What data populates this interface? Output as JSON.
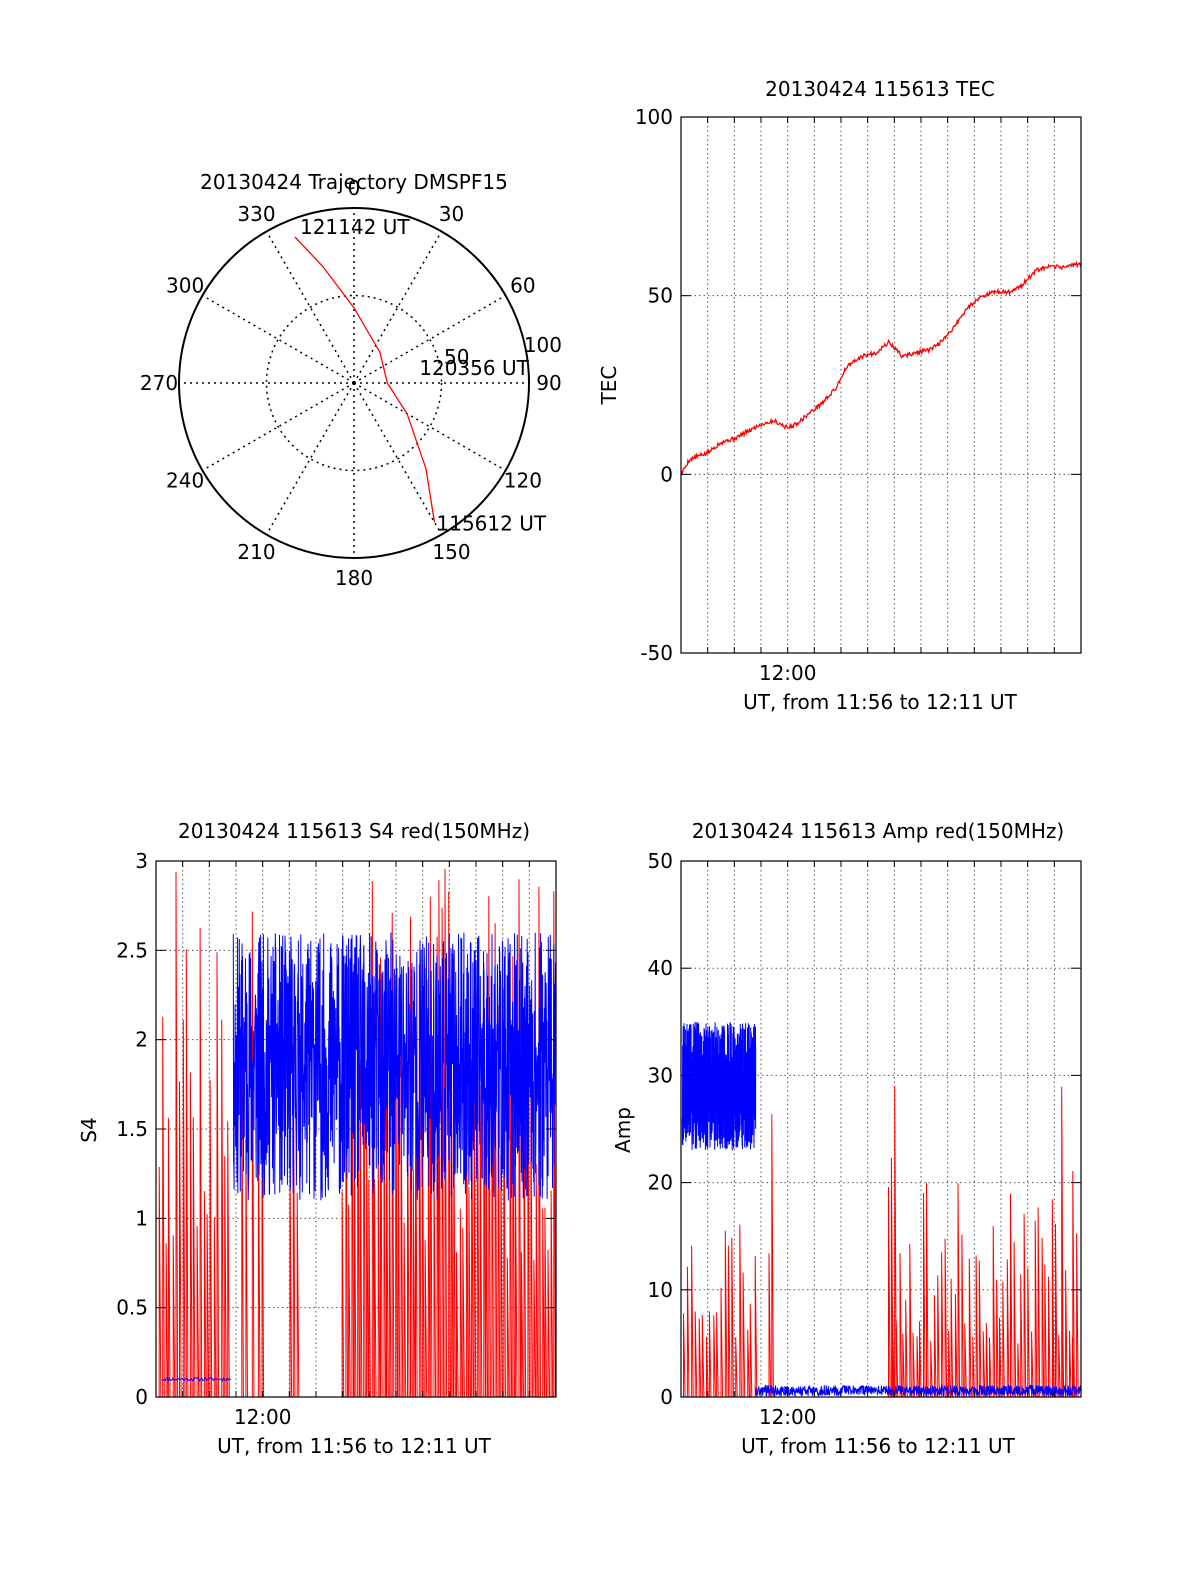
{
  "chart_data": [
    {
      "type": "polar",
      "title": "20130424 Trajectory DMSPF15",
      "angle_labels": [
        "0",
        "30",
        "60",
        "90",
        "120",
        "150",
        "180",
        "210",
        "240",
        "270",
        "300",
        "330"
      ],
      "radial_labels": [
        "50",
        "100"
      ],
      "radial_max": 100,
      "grid": true,
      "track_color": "#ff0000",
      "track_points": [
        {
          "azimuth": 150,
          "zenith": 92
        },
        {
          "azimuth": 140,
          "zenith": 64
        },
        {
          "azimuth": 120,
          "zenith": 35
        },
        {
          "azimuth": 90,
          "zenith": 19
        },
        {
          "azimuth": 40,
          "zenith": 23
        },
        {
          "azimuth": 0,
          "zenith": 43
        },
        {
          "azimuth": 345,
          "zenith": 69
        },
        {
          "azimuth": 338,
          "zenith": 90
        }
      ],
      "annotations": [
        {
          "text": "121142 UT",
          "azimuth": 338,
          "zenith": 90
        },
        {
          "text": "120356 UT",
          "azimuth": 90,
          "zenith": 19
        },
        {
          "text": "115612 UT",
          "azimuth": 150,
          "zenith": 92
        }
      ]
    },
    {
      "type": "line",
      "title": "20130424 115613 TEC",
      "xlabel": "UT, from 11:56 to 12:11 UT",
      "ylabel": "TEC",
      "xlim": [
        0,
        15
      ],
      "ylim": [
        -50,
        100
      ],
      "yticks": [
        -50,
        0,
        50,
        100
      ],
      "xticks": [
        {
          "value": 4,
          "label": "12:00"
        }
      ],
      "grid": true,
      "series": [
        {
          "color": "#ff0000",
          "noise": 0.6,
          "x": [
            0,
            0.3,
            0.6,
            1,
            1.5,
            2,
            2.5,
            3,
            3.5,
            4,
            4.3,
            4.8,
            5.3,
            5.8,
            6.2,
            6.8,
            7.3,
            7.8,
            8.3,
            8.8,
            9.4,
            9.9,
            10.3,
            10.8,
            11.3,
            11.8,
            12.3,
            12.8,
            13.3,
            13.8,
            14.3,
            15
          ],
          "y": [
            0,
            4,
            5,
            6,
            9,
            10,
            12,
            14,
            15,
            13,
            14,
            17,
            20,
            24,
            30,
            33,
            34,
            37,
            33,
            34,
            35,
            38,
            42,
            47,
            50,
            51,
            51,
            53,
            57,
            58,
            58,
            59
          ]
        }
      ]
    },
    {
      "type": "line",
      "title": "20130424 115613 S4 red(150MHz)",
      "xlabel": "UT, from 11:56 to 12:11 UT",
      "ylabel": "S4",
      "xlim": [
        0,
        15
      ],
      "ylim": [
        0,
        3
      ],
      "yticks": [
        0,
        0.5,
        1,
        1.5,
        2,
        2.5,
        3
      ],
      "ytick_labels": [
        "0",
        "0.5",
        "1",
        "1.5",
        "2",
        "2.5",
        "3"
      ],
      "xticks": [
        {
          "value": 4,
          "label": "12:00"
        }
      ],
      "grid": true,
      "series": [
        {
          "color": "#ff0000",
          "style": "spikes",
          "seed": 7,
          "segments": [
            {
              "x0": 0.1,
              "x1": 2.8,
              "spacing": 0.13,
              "min": 0,
              "max": 3
            },
            {
              "x0": 3.2,
              "x1": 4.0,
              "spacing": 0.2,
              "min": 0,
              "max": 3
            },
            {
              "x0": 5.0,
              "x1": 5.3,
              "spacing": 0.15,
              "min": 0,
              "max": 3
            },
            {
              "x0": 7.0,
              "x1": 15.0,
              "spacing": 0.11,
              "min": 0,
              "max": 3
            }
          ]
        },
        {
          "color": "#0000ff",
          "style": "noise",
          "seed": 11,
          "segments": [
            {
              "x0": 0.2,
              "x1": 2.8,
              "base": 0.1,
              "amp": 0.01,
              "n": 60
            },
            {
              "x0": 2.9,
              "x1": 15.0,
              "base": 1.85,
              "amp": 0.75,
              "n": 1300,
              "min": 0.6,
              "max": 3
            }
          ]
        }
      ]
    },
    {
      "type": "line",
      "title": "20130424 115613 Amp red(150MHz)",
      "xlabel": "UT, from 11:56 to 12:11 UT",
      "ylabel": "Amp",
      "xlim": [
        0,
        15
      ],
      "ylim": [
        0,
        50
      ],
      "yticks": [
        0,
        10,
        20,
        30,
        40,
        50
      ],
      "xticks": [
        {
          "value": 4,
          "label": "12:00"
        }
      ],
      "grid": true,
      "series": [
        {
          "color": "#ff0000",
          "style": "spikes",
          "seed": 23,
          "segments": [
            {
              "x0": 0.1,
              "x1": 2.8,
              "spacing": 0.14,
              "min": 0,
              "max": 18
            },
            {
              "x0": 3.3,
              "x1": 3.4,
              "spacing": 0.1,
              "min": 0,
              "max": 44
            },
            {
              "x0": 7.8,
              "x1": 14.9,
              "spacing": 0.13,
              "min": 0,
              "max": 20
            },
            {
              "x0": 7.9,
              "x1": 8.0,
              "spacing": 0.1,
              "min": 0,
              "max": 31
            },
            {
              "x0": 14.0,
              "x1": 14.7,
              "spacing": 0.33,
              "min": 0,
              "max": 40
            }
          ]
        },
        {
          "color": "#0000ff",
          "style": "noise",
          "seed": 31,
          "segments": [
            {
              "x0": 0.05,
              "x1": 2.8,
              "base": 29,
              "amp": 6,
              "n": 900,
              "min": 20,
              "max": 41
            },
            {
              "x0": 2.8,
              "x1": 15.0,
              "base": 0.6,
              "amp": 0.5,
              "n": 900,
              "min": 0,
              "max": 3
            }
          ]
        }
      ]
    }
  ]
}
